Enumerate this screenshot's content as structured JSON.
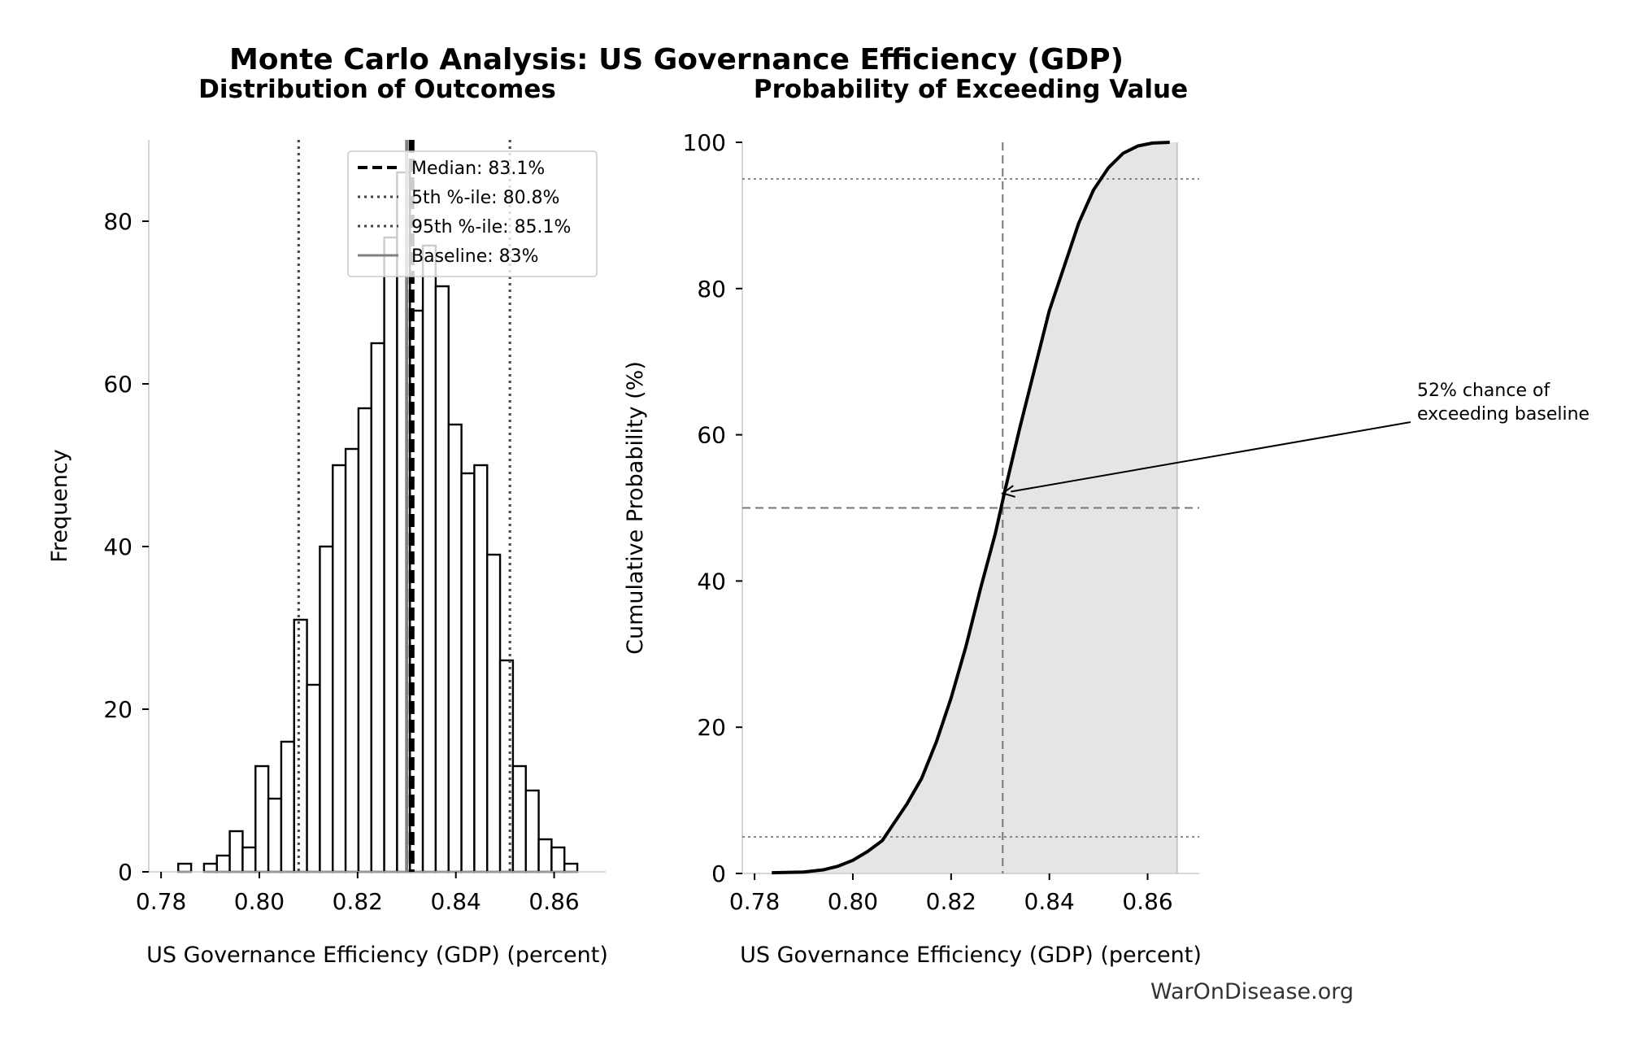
{
  "suptitle": "Monte Carlo Analysis: US Governance Efficiency (GDP)",
  "watermark": "WarOnDisease.org",
  "chart_data": [
    {
      "type": "bar",
      "subtype": "histogram",
      "title": "Distribution of Outcomes",
      "xlabel": "US Governance Efficiency (GDP) (percent)",
      "ylabel": "Frequency",
      "xlim": [
        0.7775,
        0.8705
      ],
      "ylim": [
        0,
        90
      ],
      "xticks": [
        0.78,
        0.8,
        0.82,
        0.84,
        0.86
      ],
      "xtick_labels": [
        "0.78",
        "0.80",
        "0.82",
        "0.84",
        "0.86"
      ],
      "yticks": [
        0,
        20,
        40,
        60,
        80
      ],
      "ytick_labels": [
        "0",
        "20",
        "40",
        "60",
        "80"
      ],
      "bin_start": 0.7835,
      "bin_width": 0.00262,
      "values": [
        1,
        0,
        1,
        2,
        5,
        3,
        13,
        9,
        16,
        31,
        23,
        40,
        50,
        52,
        57,
        65,
        78,
        86,
        69,
        77,
        72,
        55,
        49,
        50,
        39,
        26,
        13,
        10,
        4,
        3,
        1
      ],
      "bar_fill": "#ffffff",
      "bar_edge": "#000000",
      "reference_lines": [
        {
          "name": "Median: 83.1%",
          "x": 0.831,
          "style": "dashed",
          "color": "#000000"
        },
        {
          "name": "5th %-ile: 80.8%",
          "x": 0.808,
          "style": "dotted",
          "color": "#444444"
        },
        {
          "name": "95th %-ile: 85.1%",
          "x": 0.851,
          "style": "dotted",
          "color": "#444444"
        },
        {
          "name": "Baseline: 83%",
          "x": 0.83,
          "style": "solid",
          "color": "#808080"
        }
      ],
      "legend_position": "upper-right",
      "grid": false
    },
    {
      "type": "line",
      "subtype": "cdf",
      "title": "Probability of Exceeding Value",
      "xlabel": "US Governance Efficiency (GDP) (percent)",
      "ylabel": "Cumulative Probability (%)",
      "xlim": [
        0.7775,
        0.8705
      ],
      "ylim": [
        0,
        100
      ],
      "xticks": [
        0.78,
        0.8,
        0.82,
        0.84,
        0.86
      ],
      "xtick_labels": [
        "0.78",
        "0.80",
        "0.82",
        "0.84",
        "0.86"
      ],
      "yticks": [
        0,
        20,
        40,
        60,
        80,
        100
      ],
      "ytick_labels": [
        "0",
        "20",
        "40",
        "60",
        "80",
        "100"
      ],
      "x": [
        0.7835,
        0.79,
        0.794,
        0.797,
        0.8,
        0.803,
        0.806,
        0.808,
        0.811,
        0.814,
        0.817,
        0.82,
        0.823,
        0.826,
        0.829,
        0.831,
        0.834,
        0.837,
        0.84,
        0.843,
        0.846,
        0.849,
        0.852,
        0.855,
        0.858,
        0.861,
        0.8645
      ],
      "y": [
        0.1,
        0.2,
        0.5,
        1.0,
        1.8,
        3.0,
        4.5,
        6.5,
        9.5,
        13.0,
        18.0,
        24.0,
        31.0,
        39.0,
        46.5,
        52.5,
        61.0,
        69.0,
        77.0,
        83.0,
        89.0,
        93.5,
        96.5,
        98.5,
        99.5,
        99.9,
        100.0
      ],
      "fill_color": "#e5e5e5",
      "fill_to_x": 0.866,
      "baseline_x": 0.8305,
      "hlines": [
        5,
        50,
        95
      ],
      "annotation": {
        "text": [
          "52% chance of",
          "exceeding baseline"
        ],
        "points_to": {
          "x": 0.8305,
          "y": 52
        }
      },
      "grid": false
    }
  ]
}
